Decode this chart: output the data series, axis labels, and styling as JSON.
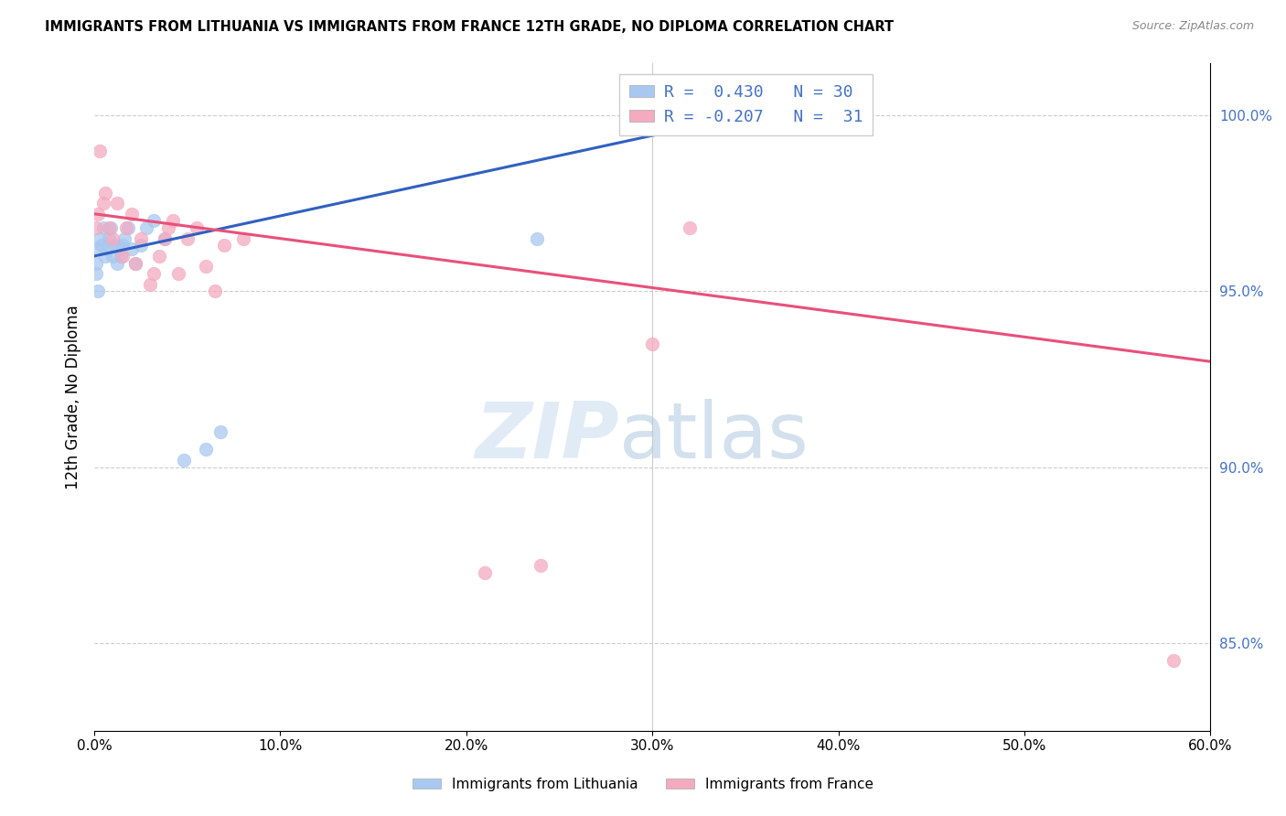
{
  "title": "IMMIGRANTS FROM LITHUANIA VS IMMIGRANTS FROM FRANCE 12TH GRADE, NO DIPLOMA CORRELATION CHART",
  "source": "Source: ZipAtlas.com",
  "ylabel": "12th Grade, No Diploma",
  "ylabel_right_ticks": [
    "100.0%",
    "95.0%",
    "90.0%",
    "85.0%"
  ],
  "ylabel_right_vals": [
    1.0,
    0.95,
    0.9,
    0.85
  ],
  "xlabel_ticks": [
    0.0,
    0.1,
    0.2,
    0.3,
    0.4,
    0.5,
    0.6
  ],
  "xlim": [
    0.0,
    0.6
  ],
  "ylim": [
    0.825,
    1.015
  ],
  "r_lithuania": 0.43,
  "n_lithuania": 30,
  "r_france": -0.207,
  "n_france": 31,
  "legend_label_1": "Immigrants from Lithuania",
  "legend_label_2": "Immigrants from France",
  "color_lithuania": "#A8C8F0",
  "color_france": "#F4AABF",
  "line_color_lithuania": "#3060C0",
  "line_color_france": "#E8507A",
  "lithuania_x": [
    0.001,
    0.002,
    0.003,
    0.004,
    0.005,
    0.006,
    0.007,
    0.008,
    0.009,
    0.01,
    0.011,
    0.012,
    0.013,
    0.014,
    0.015,
    0.016,
    0.018,
    0.02,
    0.022,
    0.025,
    0.028,
    0.032,
    0.038,
    0.048,
    0.06,
    0.068,
    0.238,
    0.001,
    0.002,
    0.35
  ],
  "lithuania_y": [
    0.958,
    0.962,
    0.965,
    0.963,
    0.968,
    0.96,
    0.962,
    0.965,
    0.968,
    0.96,
    0.963,
    0.958,
    0.962,
    0.96,
    0.963,
    0.965,
    0.968,
    0.962,
    0.958,
    0.963,
    0.968,
    0.97,
    0.965,
    0.902,
    0.905,
    0.91,
    0.965,
    0.955,
    0.95,
    0.998
  ],
  "france_x": [
    0.001,
    0.002,
    0.003,
    0.005,
    0.006,
    0.008,
    0.01,
    0.012,
    0.015,
    0.017,
    0.02,
    0.022,
    0.025,
    0.03,
    0.032,
    0.035,
    0.038,
    0.04,
    0.042,
    0.045,
    0.05,
    0.055,
    0.06,
    0.065,
    0.07,
    0.08,
    0.21,
    0.24,
    0.3,
    0.32,
    0.58
  ],
  "france_y": [
    0.968,
    0.972,
    0.99,
    0.975,
    0.978,
    0.968,
    0.965,
    0.975,
    0.96,
    0.968,
    0.972,
    0.958,
    0.965,
    0.952,
    0.955,
    0.96,
    0.965,
    0.968,
    0.97,
    0.955,
    0.965,
    0.968,
    0.957,
    0.95,
    0.963,
    0.965,
    0.87,
    0.872,
    0.935,
    0.968,
    0.845
  ],
  "lith_line_x": [
    0.0,
    0.35
  ],
  "lith_line_y": [
    0.96,
    1.0
  ],
  "france_line_x": [
    0.0,
    0.6
  ],
  "france_line_y": [
    0.972,
    0.93
  ]
}
